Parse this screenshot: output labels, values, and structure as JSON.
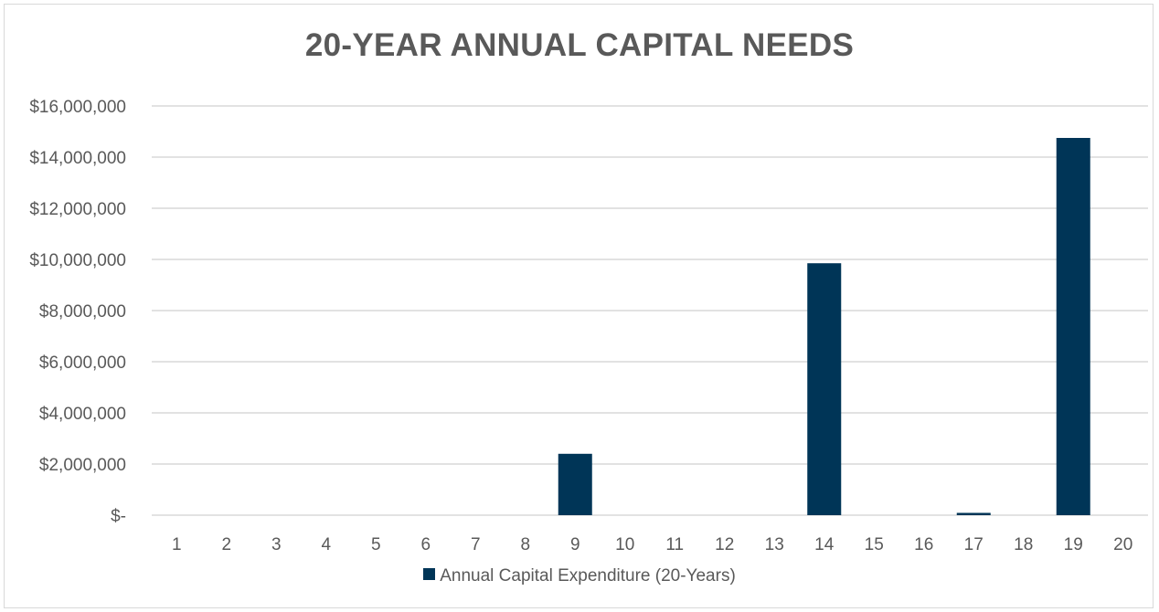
{
  "chart_data": {
    "type": "bar",
    "title": "20-YEAR ANNUAL CAPITAL NEEDS",
    "xlabel": "",
    "ylabel": "",
    "categories": [
      "1",
      "2",
      "3",
      "4",
      "5",
      "6",
      "7",
      "8",
      "9",
      "10",
      "11",
      "12",
      "13",
      "14",
      "15",
      "16",
      "17",
      "18",
      "19",
      "20"
    ],
    "series": [
      {
        "name": "Annual Capital Expenditure (20-Years)",
        "values": [
          0,
          0,
          0,
          0,
          0,
          0,
          0,
          0,
          2400000,
          0,
          0,
          0,
          0,
          9850000,
          0,
          0,
          90000,
          0,
          14750000,
          0
        ]
      }
    ],
    "ylim": [
      0,
      16000000
    ],
    "yticks": [
      0,
      2000000,
      4000000,
      6000000,
      8000000,
      10000000,
      12000000,
      14000000,
      16000000
    ],
    "ytick_labels": [
      "$-",
      "$2,000,000",
      "$4,000,000",
      "$6,000,000",
      "$8,000,000",
      "$10,000,000",
      "$12,000,000",
      "$14,000,000",
      "$16,000,000"
    ],
    "grid": true,
    "legend_position": "bottom",
    "colors": {
      "bar": "#003557",
      "grid": "#d9d9d9",
      "text": "#595959"
    }
  }
}
